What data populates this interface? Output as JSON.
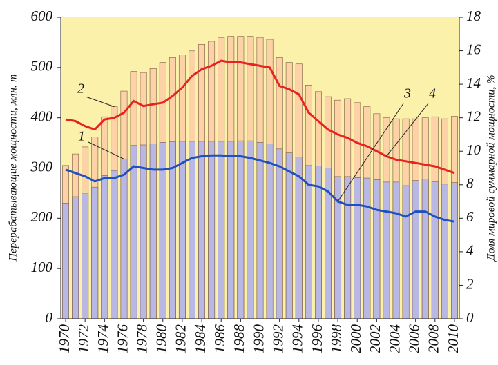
{
  "chart_data": {
    "type": "bar",
    "y_label": "Перерабатывающие мощности, млн. т",
    "y2_label": "Доля мировой суммарной мощности, %",
    "x": [
      1970,
      1971,
      1972,
      1973,
      1974,
      1975,
      1976,
      1977,
      1978,
      1979,
      1980,
      1981,
      1982,
      1983,
      1984,
      1985,
      1986,
      1987,
      1988,
      1989,
      1990,
      1991,
      1992,
      1993,
      1994,
      1995,
      1996,
      1997,
      1998,
      1999,
      2000,
      2001,
      2002,
      2003,
      2004,
      2005,
      2006,
      2007,
      2008,
      2009,
      2010
    ],
    "xlim": [
      1969.5,
      2010.5
    ],
    "xticks": [
      1970,
      1972,
      1974,
      1976,
      1978,
      1980,
      1982,
      1984,
      1986,
      1988,
      1990,
      1992,
      1994,
      1996,
      1998,
      2000,
      2002,
      2004,
      2006,
      2008,
      2010
    ],
    "ylim": [
      0,
      600
    ],
    "yticks": [
      0,
      100,
      200,
      300,
      400,
      500,
      600
    ],
    "y2lim": [
      0,
      18
    ],
    "y2ticks": [
      0,
      2,
      4,
      6,
      8,
      10,
      12,
      14,
      16,
      18
    ],
    "background": "#fbf1ab",
    "series": [
      {
        "name": "2",
        "type": "bar",
        "color": "#fcd2a6",
        "values": [
          305,
          328,
          342,
          362,
          402,
          422,
          453,
          492,
          490,
          498,
          510,
          520,
          525,
          533,
          546,
          552,
          560,
          562,
          562,
          562,
          560,
          556,
          520,
          510,
          507,
          465,
          452,
          442,
          435,
          438,
          430,
          422,
          408,
          400,
          398,
          398,
          398,
          400,
          402,
          398,
          403
        ]
      },
      {
        "name": "1",
        "type": "bar",
        "color": "#b9b8e4",
        "values": [
          230,
          243,
          250,
          262,
          285,
          295,
          318,
          345,
          346,
          348,
          351,
          352,
          353,
          353,
          353,
          353,
          353,
          353,
          354,
          354,
          351,
          348,
          338,
          330,
          322,
          305,
          304,
          300,
          283,
          283,
          281,
          280,
          277,
          272,
          272,
          265,
          275,
          278,
          273,
          268,
          271
        ]
      },
      {
        "name": "3",
        "type": "line",
        "axis": "y2",
        "color": "#1f4fc0",
        "values": [
          8.9,
          8.7,
          8.5,
          8.2,
          8.4,
          8.4,
          8.6,
          9.1,
          9.0,
          8.9,
          8.9,
          9.0,
          9.3,
          9.6,
          9.7,
          9.75,
          9.75,
          9.7,
          9.7,
          9.6,
          9.45,
          9.3,
          9.1,
          8.8,
          8.5,
          8.0,
          7.9,
          7.6,
          7.0,
          6.8,
          6.8,
          6.7,
          6.5,
          6.4,
          6.3,
          6.1,
          6.4,
          6.4,
          6.1,
          5.9,
          5.8
        ]
      },
      {
        "name": "4",
        "type": "line",
        "axis": "y2",
        "color": "#e8231f",
        "values": [
          11.9,
          11.8,
          11.5,
          11.3,
          11.9,
          12.0,
          12.3,
          13.0,
          12.7,
          12.8,
          12.9,
          13.3,
          13.8,
          14.5,
          14.9,
          15.1,
          15.4,
          15.3,
          15.3,
          15.2,
          15.1,
          15.0,
          13.9,
          13.7,
          13.4,
          12.3,
          11.8,
          11.3,
          11.0,
          10.8,
          10.5,
          10.3,
          10.0,
          9.7,
          9.5,
          9.4,
          9.3,
          9.2,
          9.1,
          8.9,
          8.7
        ]
      }
    ]
  }
}
